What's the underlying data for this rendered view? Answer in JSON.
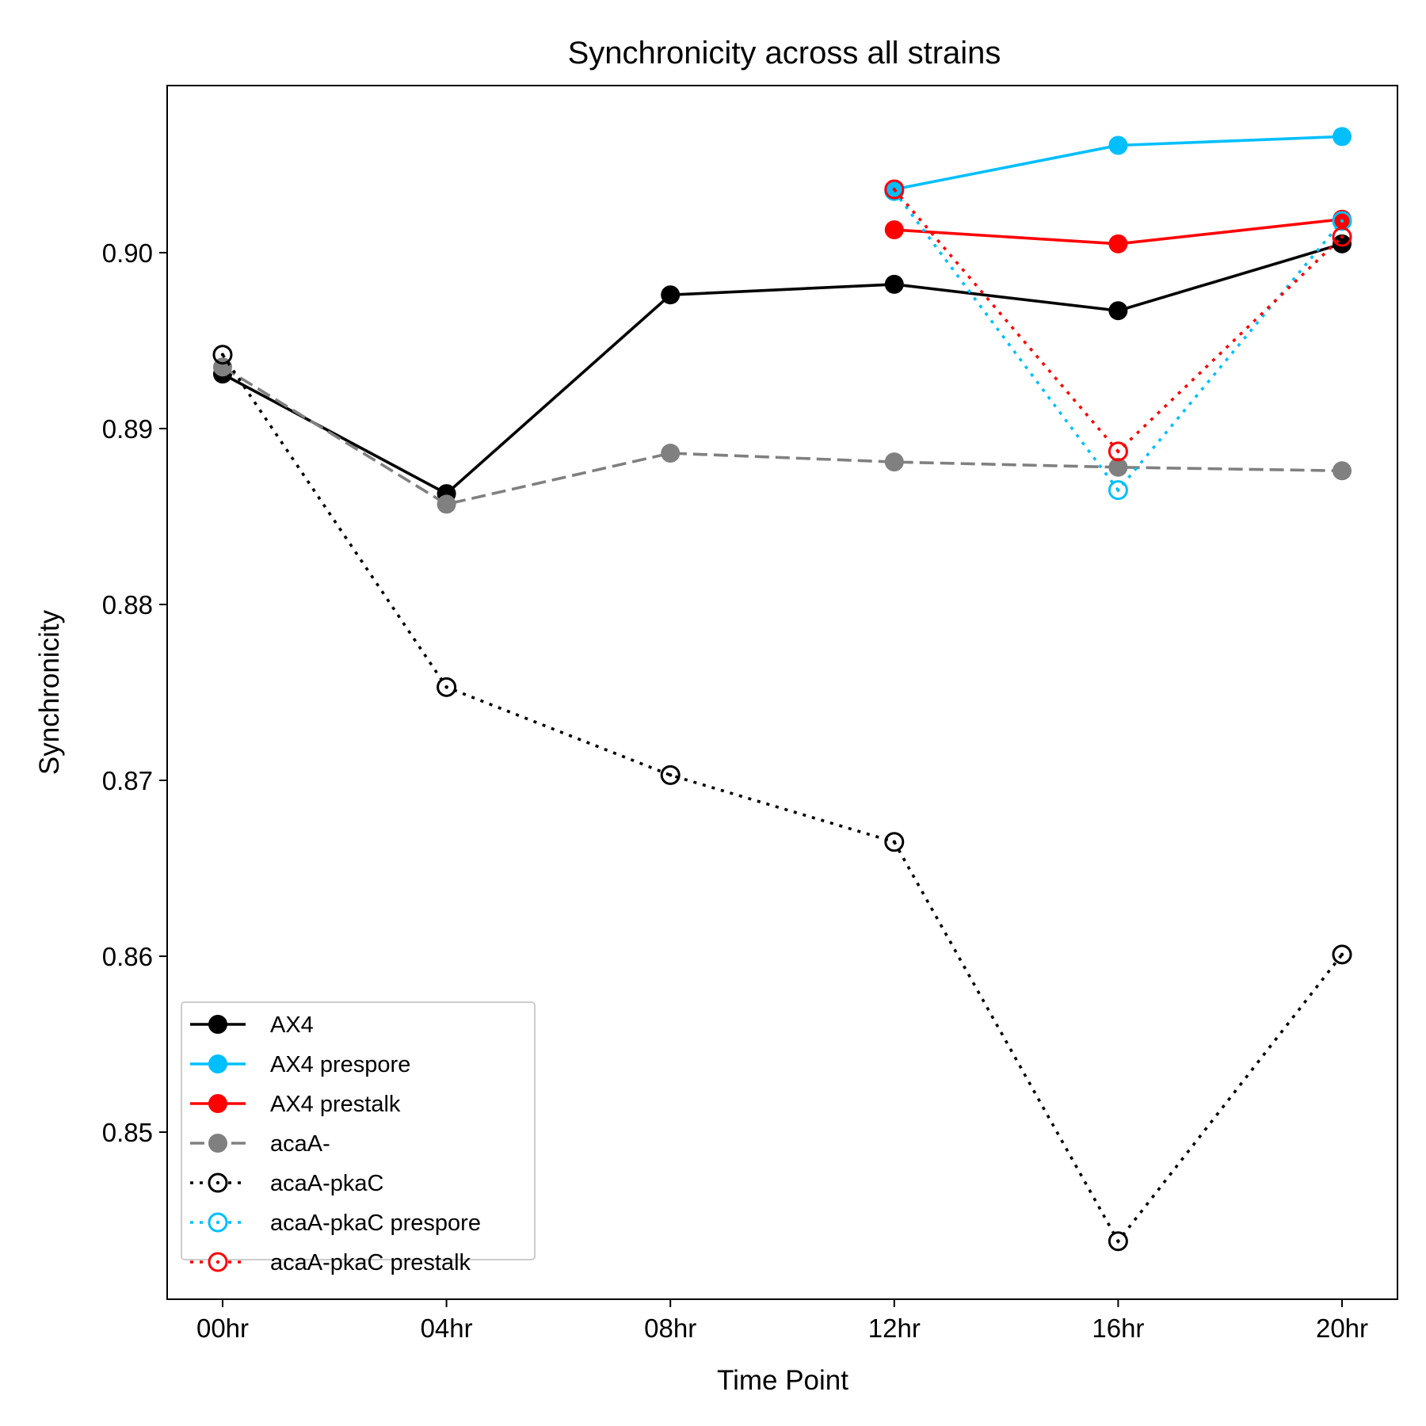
{
  "chart_data": {
    "type": "line",
    "title": "Synchronicity across all strains",
    "xlabel": "Time Point",
    "ylabel": "Synchronicity",
    "categories": [
      "00hr",
      "04hr",
      "08hr",
      "12hr",
      "16hr",
      "20hr"
    ],
    "ylim": [
      0.8405,
      0.9095
    ],
    "yticks": [
      0.85,
      0.86,
      0.87,
      0.88,
      0.89,
      0.9
    ],
    "ytick_labels": [
      "0.85",
      "0.86",
      "0.87",
      "0.88",
      "0.89",
      "0.90"
    ],
    "grid": false,
    "legend_position": "bottom-left",
    "series": [
      {
        "name": "AX4",
        "color": "#000000",
        "linestyle": "solid",
        "marker": "filled",
        "values": [
          0.8931,
          0.8863,
          0.8976,
          0.8982,
          0.8967,
          0.9005
        ]
      },
      {
        "name": "AX4 prespore",
        "color": "#00bfff",
        "linestyle": "solid",
        "marker": "filled",
        "values": [
          null,
          null,
          null,
          0.9036,
          0.9061,
          0.9066
        ]
      },
      {
        "name": "AX4 prestalk",
        "color": "#ff0000",
        "linestyle": "solid",
        "marker": "filled",
        "values": [
          null,
          null,
          null,
          0.9013,
          0.9005,
          0.9019
        ]
      },
      {
        "name": "acaA-",
        "color": "#808080",
        "linestyle": "dashed",
        "marker": "filled",
        "values": [
          0.8935,
          0.8857,
          0.8886,
          0.8881,
          0.8878,
          0.8876
        ]
      },
      {
        "name": "acaA-pkaC",
        "color": "#000000",
        "linestyle": "dotted",
        "marker": "open",
        "values": [
          0.8942,
          0.8753,
          0.8703,
          0.8665,
          0.8438,
          0.8601
        ]
      },
      {
        "name": "acaA-pkaC prespore",
        "color": "#00bfff",
        "linestyle": "dotted",
        "marker": "open",
        "values": [
          null,
          null,
          null,
          0.9035,
          0.8865,
          0.9018
        ]
      },
      {
        "name": "acaA-pkaC prestalk",
        "color": "#ff0000",
        "linestyle": "dotted",
        "marker": "open",
        "values": [
          null,
          null,
          null,
          0.9036,
          0.8887,
          0.9009
        ]
      }
    ]
  }
}
